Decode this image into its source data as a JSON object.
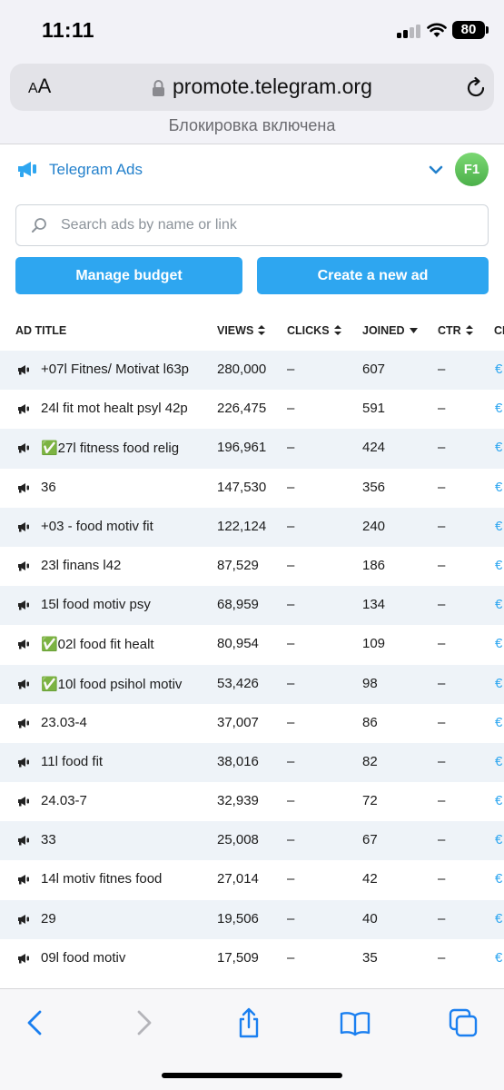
{
  "status_bar": {
    "time": "11:11",
    "battery": "80"
  },
  "browser": {
    "aa_label_small": "A",
    "aa_label_large": "A",
    "url": "promote.telegram.org",
    "blocker_notice": "Блокировка включена"
  },
  "header": {
    "brand": "Telegram Ads",
    "avatar_initials": "F1"
  },
  "search": {
    "placeholder": "Search ads by name or link",
    "value": ""
  },
  "actions": {
    "manage_budget": "Manage budget",
    "create_ad": "Create a new ad"
  },
  "table": {
    "columns": [
      "AD TITLE",
      "VIEWS",
      "CLICKS",
      "JOINED",
      "CTR",
      "CI"
    ],
    "rows": [
      {
        "title": "+07l Fitnes/ Motivat l63p",
        "views": "280,000",
        "clicks": "–",
        "joined": "607",
        "ctr": "–",
        "cpm": "€"
      },
      {
        "title": "24l fit mot healt psyl 42p",
        "views": "226,475",
        "clicks": "–",
        "joined": "591",
        "ctr": "–",
        "cpm": "€"
      },
      {
        "title": "✅27l fitness food relig",
        "views": "196,961",
        "clicks": "–",
        "joined": "424",
        "ctr": "–",
        "cpm": "€"
      },
      {
        "title": "36",
        "views": "147,530",
        "clicks": "–",
        "joined": "356",
        "ctr": "–",
        "cpm": "€"
      },
      {
        "title": "+03 - food motiv fit",
        "views": "122,124",
        "clicks": "–",
        "joined": "240",
        "ctr": "–",
        "cpm": "€"
      },
      {
        "title": "23l finans l42",
        "views": "87,529",
        "clicks": "–",
        "joined": "186",
        "ctr": "–",
        "cpm": "€"
      },
      {
        "title": "15l food motiv psy",
        "views": "68,959",
        "clicks": "–",
        "joined": "134",
        "ctr": "–",
        "cpm": "€"
      },
      {
        "title": "✅02l food fit healt",
        "views": "80,954",
        "clicks": "–",
        "joined": "109",
        "ctr": "–",
        "cpm": "€"
      },
      {
        "title": "✅10l food psihol motiv",
        "views": "53,426",
        "clicks": "–",
        "joined": "98",
        "ctr": "–",
        "cpm": "€"
      },
      {
        "title": "23.03-4",
        "views": "37,007",
        "clicks": "–",
        "joined": "86",
        "ctr": "–",
        "cpm": "€"
      },
      {
        "title": "11l food fit",
        "views": "38,016",
        "clicks": "–",
        "joined": "82",
        "ctr": "–",
        "cpm": "€"
      },
      {
        "title": "24.03-7",
        "views": "32,939",
        "clicks": "–",
        "joined": "72",
        "ctr": "–",
        "cpm": "€"
      },
      {
        "title": "33",
        "views": "25,008",
        "clicks": "–",
        "joined": "67",
        "ctr": "–",
        "cpm": "€"
      },
      {
        "title": "14l motiv fitnes food",
        "views": "27,014",
        "clicks": "–",
        "joined": "42",
        "ctr": "–",
        "cpm": "€"
      },
      {
        "title": "29",
        "views": "19,506",
        "clicks": "–",
        "joined": "40",
        "ctr": "–",
        "cpm": "€"
      },
      {
        "title": "09l food motiv",
        "views": "17,509",
        "clicks": "–",
        "joined": "35",
        "ctr": "–",
        "cpm": "€"
      }
    ]
  },
  "toolbar": {
    "icons": [
      "back-icon",
      "forward-icon",
      "share-icon",
      "bookmarks-icon",
      "tabs-icon"
    ]
  },
  "colors": {
    "accent": "#2ea6f0",
    "brand": "#2481cc",
    "row_alt": "#eef3f8",
    "avatar": "#5cc057"
  }
}
